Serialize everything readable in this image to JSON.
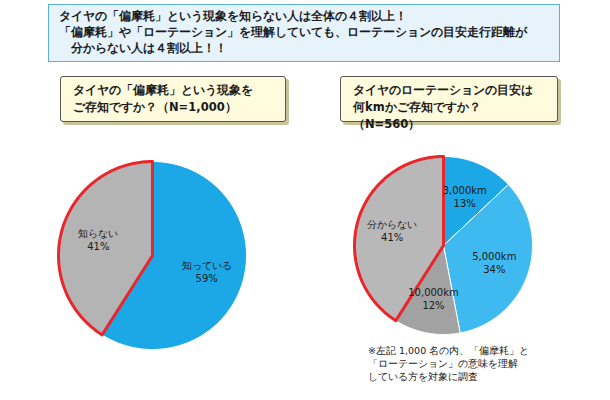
{
  "header": {
    "lines": [
      "タイヤの「偏摩耗」という現象を知らない人は全体の４割以上！",
      "「偏摩耗」や「ローテーション」を理解していても、ローテーションの目安走行距離が",
      "　分からない人は４割以上！！"
    ]
  },
  "chart_data": [
    {
      "type": "pie",
      "title": "タイヤの「偏摩耗」という現象を\nご存知ですか？（N=1,000）",
      "categories": [
        "知っている",
        "知らない"
      ],
      "values": [
        59,
        41
      ],
      "value_labels": [
        "59%",
        "41%"
      ],
      "colors": [
        "#1ca7e6",
        "#b4b4b4"
      ],
      "data_labels": true
    },
    {
      "type": "pie",
      "title": "タイヤのローテーションの目安は\n何kmかご存知ですか？（N=560）",
      "categories": [
        "3,000km",
        "5,000km",
        "10,000km",
        "分からない"
      ],
      "values": [
        13,
        34,
        12,
        41
      ],
      "value_labels": [
        "13%",
        "34%",
        "12%",
        "41%"
      ],
      "colors": [
        "#1ca7e6",
        "#3fbaf0",
        "#a2a2a2",
        "#b8b8b8"
      ],
      "data_labels": true,
      "annotation": "※左記 1,000 名の内、「偏摩耗」と\n「ローテーション」の意味を理解\nしている方を対象に調査"
    }
  ]
}
